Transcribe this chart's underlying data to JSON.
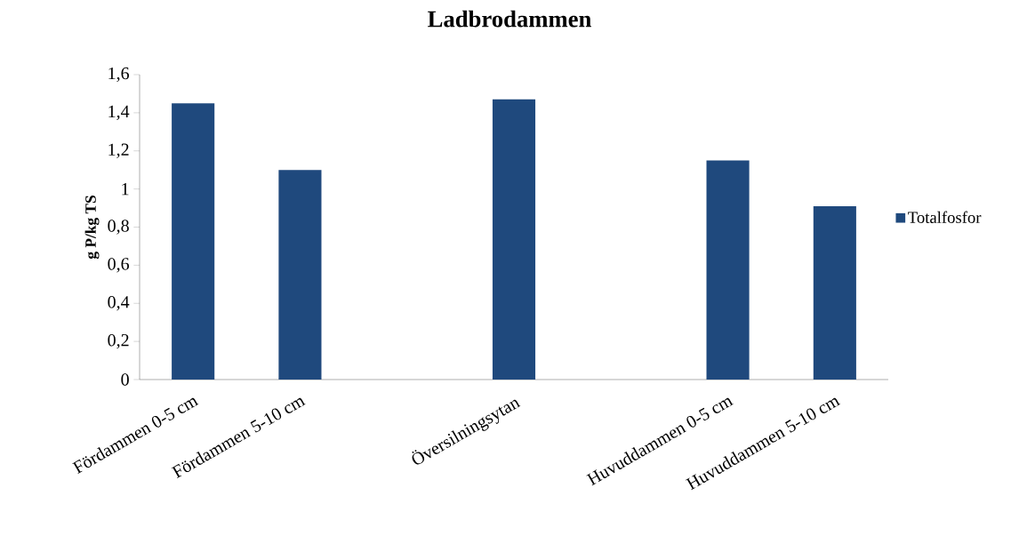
{
  "chart_data": {
    "type": "bar",
    "title": "Ladbrodammen",
    "ylabel": "g P/kg TS",
    "categories": [
      "Fördammen 0-5 cm",
      "Fördammen 5-10 cm",
      null,
      "Översilningsytan",
      null,
      "Huvuddammen 0-5 cm",
      "Huvuddammen 5-10 cm"
    ],
    "series": [
      {
        "name": "Totalfosfor",
        "color": "#1f497d",
        "values": [
          1.45,
          1.1,
          null,
          1.47,
          null,
          1.15,
          0.91
        ]
      }
    ],
    "ylim": [
      0,
      1.6
    ],
    "yticks": [
      0,
      {
        "value": 0.2,
        "label": "0,2"
      },
      {
        "value": 0.4,
        "label": "0,4"
      },
      {
        "value": 0.6,
        "label": "0,6"
      },
      {
        "value": 0.8,
        "label": "0,8"
      },
      1,
      {
        "value": 1.2,
        "label": "1,2"
      },
      {
        "value": 1.4,
        "label": "1,4"
      },
      {
        "value": 1.6,
        "label": "1,6"
      }
    ],
    "legend": "right",
    "grid": false
  }
}
